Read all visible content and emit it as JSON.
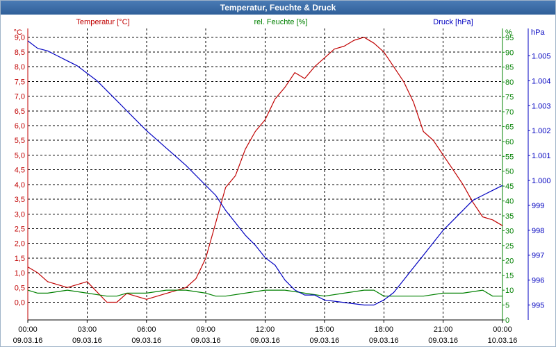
{
  "window": {
    "title": "Temperatur, Feuchte & Druck"
  },
  "colors": {
    "temperature": "#c00000",
    "humidity": "#008000",
    "pressure": "#0000c0",
    "grid": "#000000"
  },
  "chart_data": {
    "type": "line",
    "title": "Temperatur, Feuchte & Druck",
    "x_ticks": [
      {
        "time": "00:00",
        "date": "09.03.16"
      },
      {
        "time": "03:00",
        "date": "09.03.16"
      },
      {
        "time": "06:00",
        "date": "09.03.16"
      },
      {
        "time": "09:00",
        "date": "09.03.16"
      },
      {
        "time": "12:00",
        "date": "09.03.16"
      },
      {
        "time": "15:00",
        "date": "09.03.16"
      },
      {
        "time": "18:00",
        "date": "09.03.16"
      },
      {
        "time": "21:00",
        "date": "09.03.16"
      },
      {
        "time": "00:00",
        "date": "10.03.16"
      }
    ],
    "x_range_hours": [
      0,
      24
    ],
    "axes": {
      "temperature": {
        "label": "Temperatur [°C]",
        "unit": "°C",
        "range": [
          -0.6,
          9.3
        ],
        "ticks": [
          "0,0",
          "0,5",
          "1,0",
          "1,5",
          "2,0",
          "2,5",
          "3,0",
          "3,5",
          "4,0",
          "4,5",
          "5,0",
          "5,5",
          "6,0",
          "6,5",
          "7,0",
          "7,5",
          "8,0",
          "8,5",
          "9,0"
        ]
      },
      "humidity": {
        "label": "rel. Feuchte [%]",
        "unit": "%",
        "range": [
          0,
          98
        ],
        "ticks": [
          "0",
          "5",
          "10",
          "15",
          "20",
          "25",
          "30",
          "35",
          "40",
          "45",
          "50",
          "55",
          "60",
          "65",
          "70",
          "75",
          "80",
          "85",
          "90",
          "95"
        ]
      },
      "pressure": {
        "label": "Druck [hPa]",
        "unit": "hPa",
        "range": [
          994.4,
          1006.1
        ],
        "ticks": [
          "995",
          "996",
          "997",
          "998",
          "999",
          "1.000",
          "1.001",
          "1.002",
          "1.003",
          "1.004",
          "1.005"
        ]
      }
    },
    "series": [
      {
        "name": "Temperatur [°C]",
        "axis": "temperature",
        "x": [
          0,
          0.5,
          1,
          2,
          3,
          4,
          4.5,
          5,
          5.5,
          6,
          7,
          8,
          8.5,
          9,
          9.5,
          10,
          10.5,
          11,
          11.5,
          12,
          12.5,
          13,
          13.5,
          14,
          14.5,
          15,
          15.5,
          16,
          16.5,
          17,
          17.5,
          18,
          18.5,
          19,
          19.5,
          20,
          20.5,
          21,
          21.5,
          22,
          22.5,
          23,
          23.5,
          24
        ],
        "y": [
          1.2,
          1.0,
          0.7,
          0.5,
          0.7,
          0.0,
          0.0,
          0.3,
          0.2,
          0.1,
          0.3,
          0.5,
          0.8,
          1.5,
          2.7,
          3.9,
          4.3,
          5.2,
          5.8,
          6.2,
          6.9,
          7.3,
          7.8,
          7.6,
          8.0,
          8.3,
          8.6,
          8.7,
          8.9,
          9.0,
          8.8,
          8.5,
          8.0,
          7.5,
          6.8,
          5.8,
          5.5,
          5.0,
          4.5,
          4.0,
          3.4,
          2.9,
          2.8,
          2.6
        ]
      },
      {
        "name": "rel. Feuchte [%]",
        "axis": "humidity",
        "x": [
          0,
          0.5,
          1,
          2,
          3,
          4,
          4.5,
          5,
          6,
          7,
          8,
          9,
          9.5,
          10,
          11,
          12,
          13,
          14,
          15,
          16,
          17,
          17.5,
          18,
          18.5,
          19,
          20,
          21,
          22,
          23,
          23.5,
          24
        ],
        "y": [
          10,
          9,
          9,
          10,
          9,
          8,
          8,
          9,
          9,
          10,
          10,
          9,
          8,
          8,
          9,
          10,
          10,
          9,
          8,
          9,
          10,
          10,
          8,
          8,
          8,
          8,
          9,
          9,
          10,
          8,
          8
        ]
      },
      {
        "name": "Druck [hPa]",
        "axis": "pressure",
        "x": [
          0,
          0.5,
          1,
          1.5,
          2,
          2.5,
          3,
          3.5,
          4,
          4.5,
          5,
          5.5,
          6,
          7,
          8,
          9,
          9.5,
          10,
          10.5,
          11,
          11.5,
          12,
          12.5,
          13,
          13.5,
          14,
          14.5,
          15,
          16,
          17,
          17.5,
          18,
          18.5,
          19,
          19.5,
          20,
          20.5,
          21,
          21.5,
          22,
          22.5,
          23,
          23.5,
          24
        ],
        "y": [
          1005.6,
          1005.3,
          1005.2,
          1005.0,
          1004.8,
          1004.6,
          1004.3,
          1004.0,
          1003.6,
          1003.2,
          1002.8,
          1002.4,
          1002.0,
          1001.3,
          1000.6,
          999.8,
          999.4,
          998.8,
          998.3,
          997.8,
          997.4,
          996.9,
          996.6,
          996.0,
          995.6,
          995.4,
          995.4,
          995.2,
          995.1,
          995.0,
          995.0,
          995.2,
          995.5,
          996.0,
          996.5,
          997.0,
          997.5,
          998.0,
          998.4,
          998.8,
          999.2,
          999.4,
          999.6,
          999.8
        ]
      }
    ]
  }
}
